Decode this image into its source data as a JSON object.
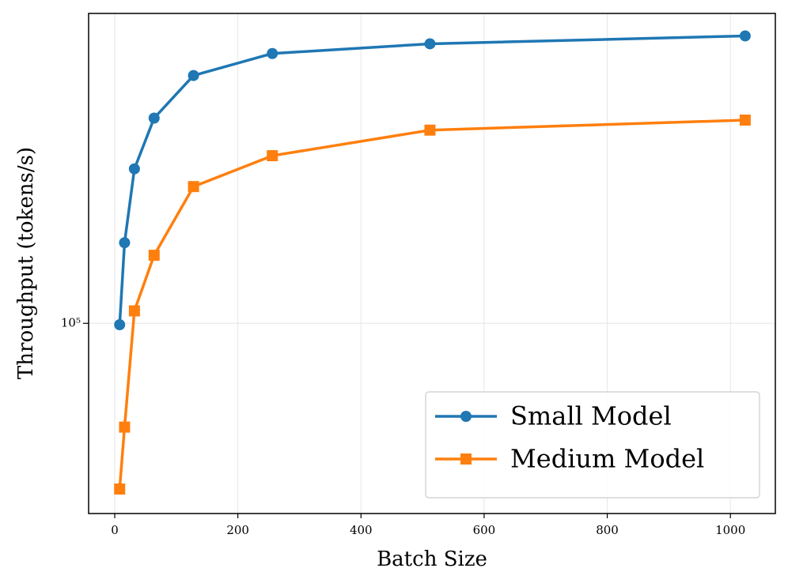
{
  "chart_data": {
    "type": "line",
    "x_label": "Batch Size",
    "y_label": "Throughput (tokens/s)",
    "x": [
      8,
      16,
      32,
      64,
      128,
      256,
      512,
      1024
    ],
    "series": [
      {
        "name": "Small Model",
        "color": "#1f77b4",
        "marker": "circle",
        "values": [
          99600,
          125700,
          155000,
          179000,
          202000,
          215000,
          221000,
          226000
        ]
      },
      {
        "name": "Medium Model",
        "color": "#ff7f0e",
        "marker": "square",
        "values": [
          62500,
          74500,
          103600,
          121300,
          147400,
          160900,
          173000,
          178000
        ]
      }
    ],
    "xlim": [
      -42.4,
      1073
    ],
    "xticks": [
      0,
      200,
      400,
      600,
      800,
      1000
    ],
    "ylim": [
      58300,
      240900
    ],
    "yticks": [
      {
        "value": 100000,
        "label": "10⁵"
      }
    ],
    "log_y": true,
    "grid": true,
    "legend": "lower right"
  }
}
